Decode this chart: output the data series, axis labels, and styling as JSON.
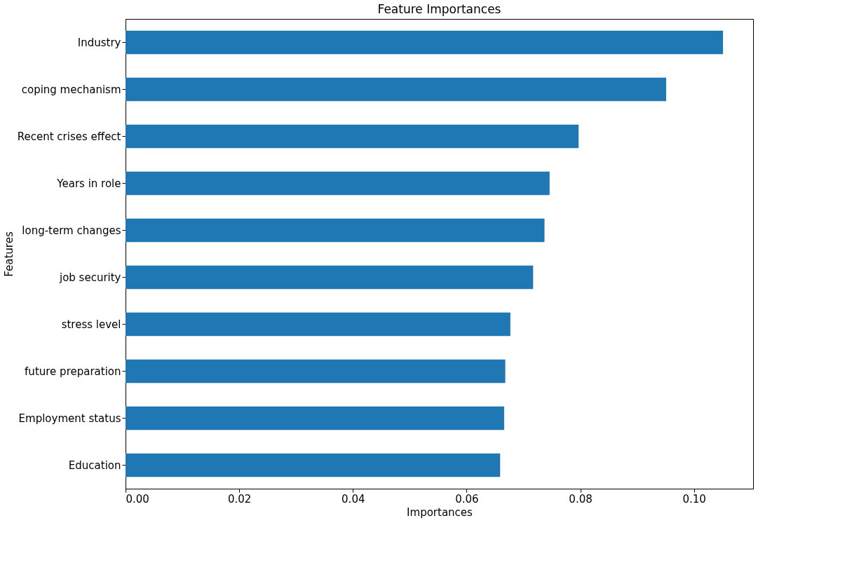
{
  "chart_data": {
    "type": "bar",
    "orientation": "horizontal",
    "title": "Feature Importances",
    "xlabel": "Importances",
    "ylabel": "Features",
    "categories": [
      "Industry",
      "coping mechanism",
      "Recent crises effect",
      "Years in role",
      "long-term changes",
      "job security",
      "stress level",
      "future preparation",
      "Employment status",
      "Education"
    ],
    "values": [
      0.1051,
      0.0951,
      0.0797,
      0.0746,
      0.0737,
      0.0717,
      0.0677,
      0.0668,
      0.0666,
      0.0659
    ],
    "color": "#1f77b4",
    "xlim": [
      0,
      0.1104
    ],
    "xticks": [
      {
        "value": 0,
        "label": "0.00"
      },
      {
        "value": 0.02,
        "label": "0.02"
      },
      {
        "value": 0.04,
        "label": "0.04"
      },
      {
        "value": 0.06,
        "label": "0.06"
      },
      {
        "value": 0.08,
        "label": "0.08"
      },
      {
        "value": 0.1,
        "label": "0.10"
      }
    ],
    "grid": false
  }
}
